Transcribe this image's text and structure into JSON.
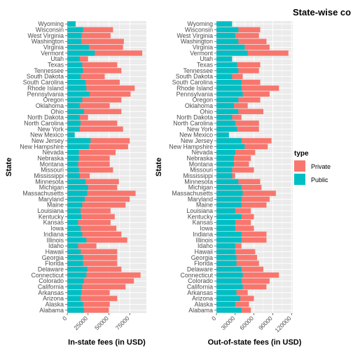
{
  "chart_data": {
    "type": "bar",
    "orientation": "horizontal",
    "title": "State-wise co",
    "legend": {
      "title": "type",
      "placement": "right",
      "entries": [
        {
          "name": "Private",
          "color": "#F8766D"
        },
        {
          "name": "Public",
          "color": "#00BFC4"
        }
      ]
    },
    "categories": [
      "Alabama",
      "Alaska",
      "Arizona",
      "Arkansas",
      "California",
      "Colorado",
      "Connecticut",
      "Delaware",
      "Florida",
      "Georgia",
      "Hawaii",
      "Idaho",
      "Illinois",
      "Indiana",
      "Iowa",
      "Kansas",
      "Kentucky",
      "Louisiana",
      "Maine",
      "Maryland",
      "Massachusetts",
      "Michigan",
      "Minnesota",
      "Mississippi",
      "Missouri",
      "Montana",
      "Nebraska",
      "Nevada",
      "New Hampshire",
      "New Jersey",
      "New Mexico",
      "New York",
      "North Carolina",
      "North Dakota",
      "Ohio",
      "Oklahoma",
      "Oregon",
      "Pennsylvania",
      "Rhode Island",
      "South Carolina",
      "South Dakota",
      "Tennessee",
      "Texas",
      "Utah",
      "Vermont",
      "Virginia",
      "Washington",
      "West Virginia",
      "Wisconsin",
      "Wyoming"
    ],
    "panels": [
      {
        "xlabel": "In-state fees (in USD)",
        "ylabel": "State",
        "xlim": [
          0,
          95000
        ],
        "xticks": [
          0,
          25000,
          50000,
          75000
        ],
        "xtick_labels": [
          "0",
          "25000",
          "50000",
          "75000"
        ],
        "series": [
          {
            "name": "Private",
            "values": [
              50000,
              51000,
              60000,
              51000,
              70000,
              80000,
              88000,
              65000,
              60000,
              60000,
              60000,
              35000,
              72000,
              65000,
              59000,
              52000,
              57000,
              52000,
              70000,
              75000,
              82000,
              60000,
              62000,
              27000,
              55000,
              51000,
              51000,
              58000,
              73000,
              75000,
              7000,
              67000,
              60000,
              25000,
              65000,
              51000,
              65000,
              76000,
              81000,
              63000,
              45000,
              65000,
              60000,
              25000,
              90000,
              67000,
              68000,
              52000,
              55000,
              10000
            ]
          },
          {
            "name": "Public",
            "values": [
              20000,
              19000,
              16000,
              17000,
              18000,
              20000,
              23000,
              24000,
              19000,
              19000,
              16000,
              13000,
              23000,
              18000,
              16000,
              13000,
              17000,
              16000,
              18000,
              21000,
              24000,
              25000,
              22000,
              15000,
              14000,
              13000,
              14000,
              14000,
              26000,
              28000,
              9000,
              15000,
              16000,
              15000,
              20000,
              15000,
              18000,
              27000,
              23000,
              22000,
              16000,
              19000,
              18000,
              15000,
              33000,
              26000,
              17000,
              17000,
              19000,
              10000
            ]
          }
        ]
      },
      {
        "xlabel": "Out-of-state fees (in USD)",
        "ylabel": "State",
        "xlim": [
          0,
          122000
        ],
        "xticks": [
          0,
          30000,
          60000,
          90000,
          120000
        ],
        "xtick_labels": [
          "0",
          "30000",
          "60000",
          "90000",
          "120000"
        ],
        "series": [
          {
            "name": "Private",
            "values": [
              55000,
              52000,
              60000,
              50000,
              80000,
              85000,
              100000,
              75000,
              68000,
              65000,
              62000,
              40000,
              80000,
              80000,
              60000,
              55000,
              60000,
              55000,
              80000,
              85000,
              95000,
              72000,
              70000,
              30000,
              60000,
              52000,
              55000,
              62000,
              82000,
              88000,
              15000,
              68000,
              68000,
              40000,
              75000,
              50000,
              70000,
              85000,
              100000,
              70000,
              42000,
              68000,
              70000,
              25000,
              115000,
              85000,
              80000,
              68000,
              70000,
              20000
            ]
          },
          {
            "name": "Public",
            "values": [
              40000,
              30000,
              38000,
              32000,
              42000,
              40000,
              42000,
              40000,
              32000,
              32000,
              30000,
              30000,
              40000,
              40000,
              30000,
              30000,
              40000,
              30000,
              40000,
              40000,
              42000,
              40000,
              35000,
              25000,
              25000,
              28000,
              28000,
              30000,
              45000,
              40000,
              20000,
              33000,
              30000,
              25000,
              35000,
              28000,
              35000,
              42000,
              40000,
              40000,
              25000,
              35000,
              33000,
              25000,
              50000,
              45000,
              35000,
              30000,
              35000,
              25000
            ]
          }
        ]
      }
    ]
  }
}
